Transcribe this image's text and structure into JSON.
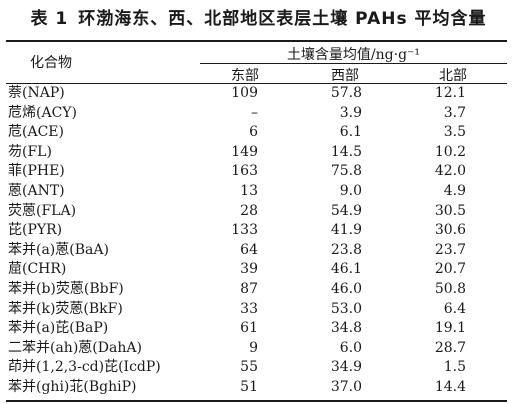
{
  "table": {
    "label": "表 1",
    "title": "环渤海东、西、北部地区表层土壤 PAHs 平均含量",
    "compound_header": "化合物",
    "group_header": "土壤含量均值/ng·g⁻¹",
    "regions": [
      "东部",
      "西部",
      "北部"
    ],
    "rows": [
      {
        "name": "萘(NAP)",
        "east": "109",
        "west": "57.8",
        "north": "12.1"
      },
      {
        "name": "苊烯(ACY)",
        "east": "–",
        "west": "3.9",
        "north": "3.7"
      },
      {
        "name": "苊(ACE)",
        "east": "6",
        "west": "6.1",
        "north": "3.5"
      },
      {
        "name": "芴(FL)",
        "east": "149",
        "west": "14.5",
        "north": "10.2"
      },
      {
        "name": "菲(PHE)",
        "east": "163",
        "west": "75.8",
        "north": "42.0"
      },
      {
        "name": "蒽(ANT)",
        "east": "13",
        "west": "9.0",
        "north": "4.9"
      },
      {
        "name": "荧蒽(FLA)",
        "east": "28",
        "west": "54.9",
        "north": "30.5"
      },
      {
        "name": "芘(PYR)",
        "east": "133",
        "west": "41.9",
        "north": "30.6"
      },
      {
        "name": "苯并(a)蒽(BaA)",
        "east": "64",
        "west": "23.8",
        "north": "23.7"
      },
      {
        "name": "䓛(CHR)",
        "east": "39",
        "west": "46.1",
        "north": "20.7"
      },
      {
        "name": "苯并(b)荧蒽(BbF)",
        "east": "87",
        "west": "46.0",
        "north": "50.8"
      },
      {
        "name": "苯并(k)荧蒽(BkF)",
        "east": "33",
        "west": "53.0",
        "north": "6.4"
      },
      {
        "name": "苯并(a)芘(BaP)",
        "east": "61",
        "west": "34.8",
        "north": "19.1"
      },
      {
        "name": "二苯并(ah)蒽(DahA)",
        "east": "9",
        "west": "6.0",
        "north": "28.7"
      },
      {
        "name": "茚并(1,2,3-cd)芘(IcdP)",
        "east": "55",
        "west": "34.9",
        "north": "1.5"
      },
      {
        "name": "苯并(ghi)苝(BghiP)",
        "east": "51",
        "west": "37.0",
        "north": "14.4"
      }
    ]
  }
}
